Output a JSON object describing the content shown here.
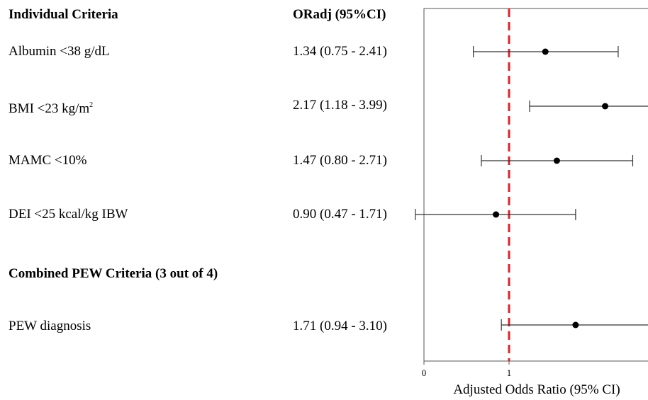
{
  "headers": {
    "criteria": "Individual Criteria",
    "or": "ORadj (95%CI)",
    "combined": "Combined  PEW Criteria  (3 out of 4)"
  },
  "rows": [
    {
      "label": "Albumin <38 g/dL",
      "or_text": "1.34 (0.75 - 2.41)"
    },
    {
      "label": "BMI <23 kg/m",
      "label_sup": "2",
      "or_text": "2.17 (1.18 - 3.99)"
    },
    {
      "label": "MAMC <10%",
      "or_text": "1.47 (0.80 - 2.71)"
    },
    {
      "label": "DEI <25 kcal/kg IBW",
      "or_text": "0.90 (0.47 - 1.71)"
    },
    {
      "label": "PEW diagnosis",
      "or_text": "1.71 (0.94 - 3.10)"
    }
  ],
  "chart_data": {
    "type": "forest",
    "xlabel": "Adjusted Odds Ratio (95% CI)",
    "x_ticks": [
      "0",
      "1"
    ],
    "reference_line": 1,
    "reference_color": "#e0232b",
    "series": [
      {
        "label": "Albumin <38 g/dL",
        "or": 1.34,
        "lo": 0.75,
        "hi": 2.41
      },
      {
        "label": "BMI <23 kg/m2",
        "or": 2.17,
        "lo": 1.18,
        "hi": 3.99
      },
      {
        "label": "MAMC <10%",
        "or": 1.47,
        "lo": 0.8,
        "hi": 2.71
      },
      {
        "label": "DEI <25 kcal/kg IBW",
        "or": 0.9,
        "lo": 0.47,
        "hi": 1.71
      },
      {
        "label": "PEW diagnosis",
        "or": 1.71,
        "lo": 0.94,
        "hi": 3.1
      }
    ]
  }
}
